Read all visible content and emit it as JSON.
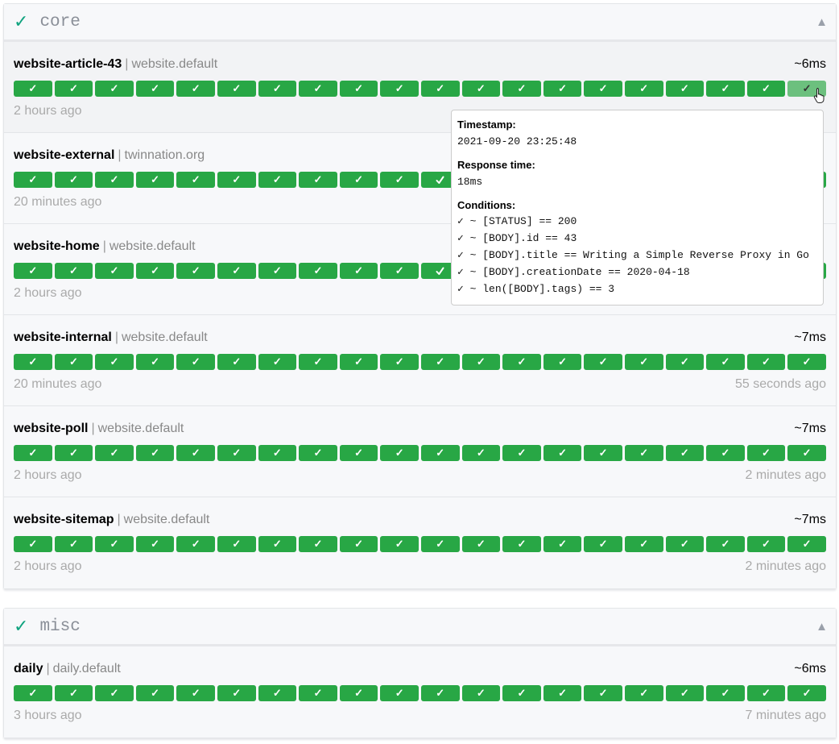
{
  "colors": {
    "success": "#28a745",
    "hovered_bar": "#6cc07e",
    "group_check": "#10a37f"
  },
  "bar_label": "✓",
  "groups": [
    {
      "name": "core",
      "status_icon": "✓",
      "collapse_icon": "▲",
      "services": [
        {
          "name": "website-article-43",
          "group": "website.default",
          "response": "~6ms",
          "oldest": "2 hours ago",
          "newest": "",
          "bars": 20,
          "hovered": true
        },
        {
          "name": "website-external",
          "group": "twinnation.org",
          "response": "",
          "oldest": "20 minutes ago",
          "newest": "",
          "bars": 20
        },
        {
          "name": "website-home",
          "group": "website.default",
          "response": "",
          "oldest": "2 hours ago",
          "newest": "",
          "bars": 20
        },
        {
          "name": "website-internal",
          "group": "website.default",
          "response": "~7ms",
          "oldest": "20 minutes ago",
          "newest": "55 seconds ago",
          "bars": 20
        },
        {
          "name": "website-poll",
          "group": "website.default",
          "response": "~7ms",
          "oldest": "2 hours ago",
          "newest": "2 minutes ago",
          "bars": 20
        },
        {
          "name": "website-sitemap",
          "group": "website.default",
          "response": "~7ms",
          "oldest": "2 hours ago",
          "newest": "2 minutes ago",
          "bars": 20
        }
      ]
    },
    {
      "name": "misc",
      "status_icon": "✓",
      "collapse_icon": "▲",
      "services": [
        {
          "name": "daily",
          "group": "daily.default",
          "response": "~6ms",
          "oldest": "3 hours ago",
          "newest": "7 minutes ago",
          "bars": 20
        }
      ]
    }
  ],
  "tooltip": {
    "timestamp_label": "Timestamp:",
    "timestamp": "2021-09-20 23:25:48",
    "response_label": "Response time:",
    "response": "18ms",
    "conditions_label": "Conditions:",
    "conditions": [
      "✓ ~ [STATUS] == 200",
      "✓ ~ [BODY].id == 43",
      "✓ ~ [BODY].title == Writing a Simple Reverse Proxy in Go",
      "✓ ~ [BODY].creationDate == 2020-04-18",
      "✓ ~ len([BODY].tags) == 3"
    ]
  }
}
